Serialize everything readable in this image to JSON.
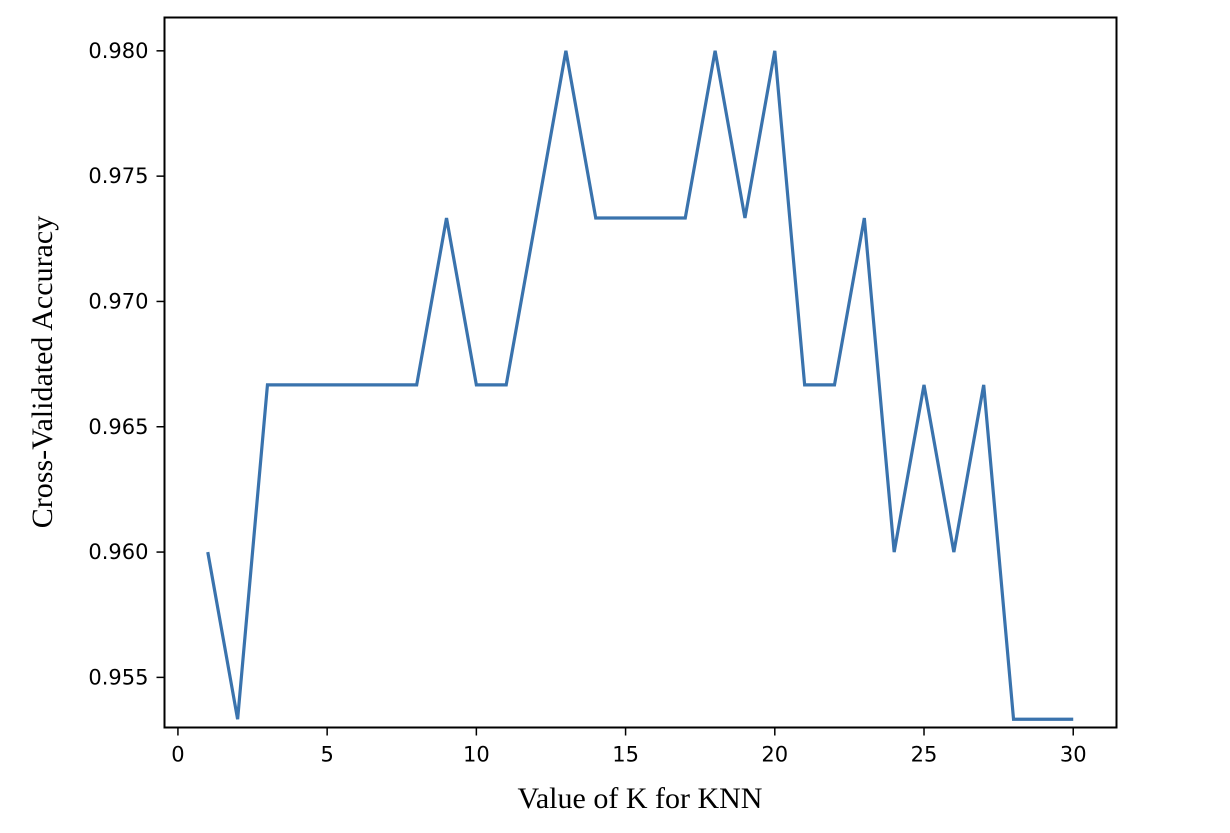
{
  "chart_data": {
    "type": "line",
    "title": "",
    "xlabel": "Value of K for KNN",
    "ylabel": "Cross-Validated Accuracy",
    "x": [
      1,
      2,
      3,
      4,
      5,
      6,
      7,
      8,
      9,
      10,
      11,
      12,
      13,
      14,
      15,
      16,
      17,
      18,
      19,
      20,
      21,
      22,
      23,
      24,
      25,
      26,
      27,
      28,
      29,
      30
    ],
    "series": [
      {
        "color": "#3a73ad",
        "values": [
          0.96,
          0.95333,
          0.96667,
          0.96667,
          0.96667,
          0.96667,
          0.96667,
          0.96667,
          0.97333,
          0.96667,
          0.96667,
          0.97333,
          0.98,
          0.97333,
          0.97333,
          0.97333,
          0.97333,
          0.98,
          0.97333,
          0.98,
          0.96667,
          0.96667,
          0.97333,
          0.96,
          0.96667,
          0.96,
          0.96667,
          0.95333,
          0.95333,
          0.95333
        ]
      }
    ],
    "xlim": [
      -0.45,
      31.45
    ],
    "ylim": [
      0.953,
      0.98133
    ],
    "xticks": [
      0,
      5,
      10,
      15,
      20,
      25,
      30
    ],
    "xtick_labels": [
      "0",
      "5",
      "10",
      "15",
      "20",
      "25",
      "30"
    ],
    "yticks": [
      0.955,
      0.96,
      0.965,
      0.97,
      0.975,
      0.98
    ],
    "ytick_labels": [
      "0.955",
      "0.960",
      "0.965",
      "0.970",
      "0.975",
      "0.980"
    ],
    "grid": false,
    "legend": "none"
  }
}
